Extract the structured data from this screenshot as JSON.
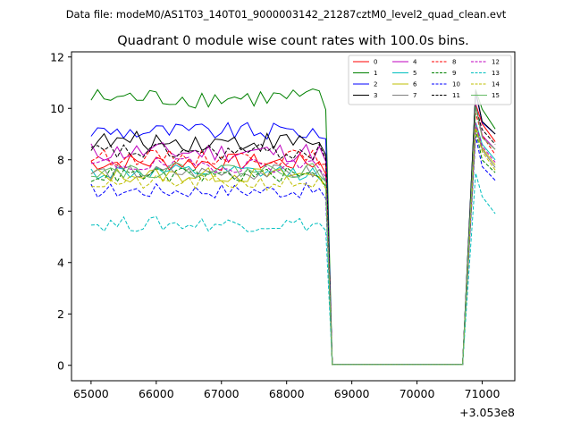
{
  "figure": {
    "suptitle": "Data file: modeM0/AS1T03_140T01_9000003142_21287cztM0_level2_quad_clean.evt"
  },
  "chart_data": {
    "type": "line",
    "title": "Quadrant 0 module wise count rates with 100.0s bins.",
    "xlabel": "",
    "ylabel": "",
    "x_offset_label": "+3.053e8",
    "x_offset": 305300000,
    "xlim": [
      64700,
      71500
    ],
    "ylim": [
      -0.6,
      12.2
    ],
    "x_ticks": [
      65000,
      66000,
      67000,
      68000,
      69000,
      70000,
      71000
    ],
    "x_tick_labels": [
      "65000",
      "66000",
      "67000",
      "68000",
      "69000",
      "70000",
      "71000"
    ],
    "y_ticks": [
      0,
      2,
      4,
      6,
      8,
      10,
      12
    ],
    "y_tick_labels": [
      "0",
      "2",
      "4",
      "6",
      "8",
      "10",
      "12"
    ],
    "grid": false,
    "legend_position": "upper-right",
    "legend_columns": 4,
    "segments": {
      "active_start": 65000,
      "active_end": 68500,
      "drop_start": 68600,
      "gap_start": 68700,
      "gap_end": 70700,
      "recovery_start": 70900,
      "recovery_end": 71200,
      "bin": 100
    },
    "series": [
      {
        "name": "0",
        "color": "#ff0000",
        "dash": "solid",
        "level": 7.9,
        "end": 8.7,
        "noise": 0.35
      },
      {
        "name": "1",
        "color": "#008000",
        "dash": "solid",
        "level": 10.4,
        "end": 9.2,
        "noise": 0.4
      },
      {
        "name": "2",
        "color": "#0000ff",
        "dash": "solid",
        "level": 9.1,
        "end": 9.0,
        "noise": 0.35
      },
      {
        "name": "3",
        "color": "#000000",
        "dash": "solid",
        "level": 8.7,
        "end": 9.0,
        "noise": 0.4
      },
      {
        "name": "4",
        "color": "#bf00bf",
        "dash": "solid",
        "level": 8.3,
        "end": 8.4,
        "noise": 0.4
      },
      {
        "name": "5",
        "color": "#00bfbf",
        "dash": "solid",
        "level": 7.5,
        "end": 8.0,
        "noise": 0.3
      },
      {
        "name": "6",
        "color": "#bfbf00",
        "dash": "solid",
        "level": 7.4,
        "end": 7.8,
        "noise": 0.3
      },
      {
        "name": "7",
        "color": "#808080",
        "dash": "solid",
        "level": 7.5,
        "end": 7.7,
        "noise": 0.3
      },
      {
        "name": "8",
        "color": "#ff0000",
        "dash": "dashed",
        "level": 8.1,
        "end": 8.2,
        "noise": 0.3
      },
      {
        "name": "9",
        "color": "#008000",
        "dash": "dashed",
        "level": 7.4,
        "end": 7.5,
        "noise": 0.3
      },
      {
        "name": "10",
        "color": "#0000ff",
        "dash": "dashed",
        "level": 6.8,
        "end": 7.2,
        "noise": 0.3
      },
      {
        "name": "11",
        "color": "#000000",
        "dash": "dashed",
        "level": 8.3,
        "end": 8.6,
        "noise": 0.35
      },
      {
        "name": "12",
        "color": "#bf00bf",
        "dash": "dashed",
        "level": 7.8,
        "end": 7.9,
        "noise": 0.3
      },
      {
        "name": "13",
        "color": "#00bfbf",
        "dash": "dashed",
        "level": 5.5,
        "end": 5.9,
        "noise": 0.3
      },
      {
        "name": "14",
        "color": "#bfbf00",
        "dash": "dashed",
        "level": 7.1,
        "end": 7.6,
        "noise": 0.3
      },
      {
        "name": "15",
        "color": "#66bb66",
        "dash": "solid",
        "level": 7.6,
        "end": 8.4,
        "noise": 0.3
      }
    ]
  }
}
